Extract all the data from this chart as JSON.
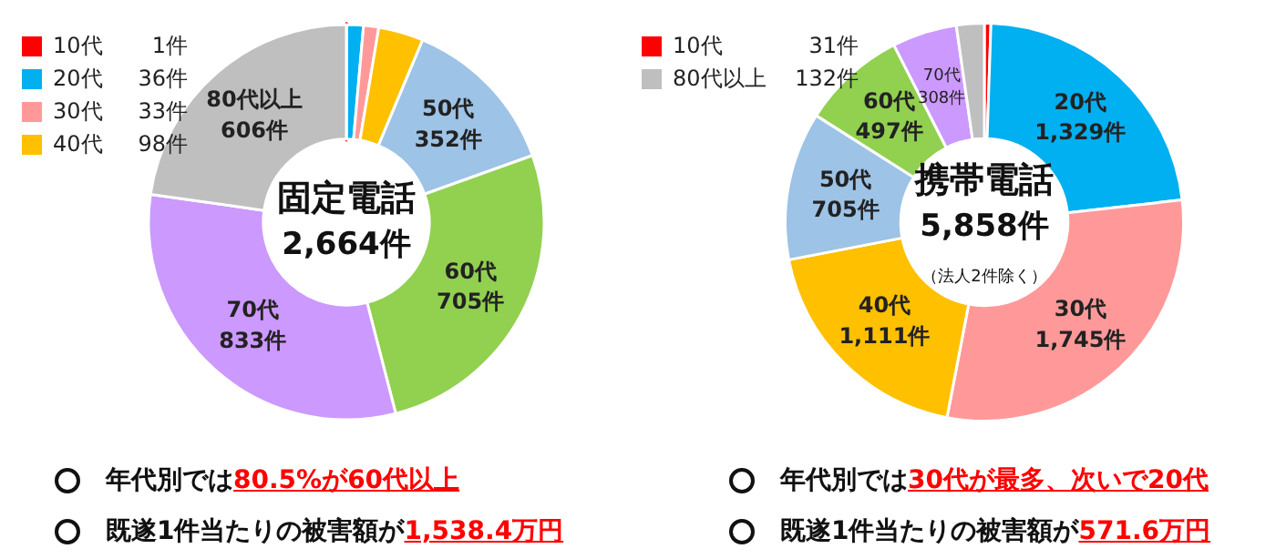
{
  "chart_data": [
    {
      "type": "donut",
      "title": "固定電話",
      "subtitle": "2,664件",
      "legend": "top left",
      "data_labels": true,
      "categories": [
        "10代",
        "20代",
        "30代",
        "40代",
        "50代",
        "60代",
        "70代",
        "80代以上"
      ],
      "values": [
        1,
        36,
        33,
        98,
        352,
        705,
        833,
        606
      ],
      "value_labels": [
        "1件",
        "36件",
        "33件",
        "98件",
        "352件",
        "705件",
        "833件",
        "606件"
      ],
      "colors": [
        "#ff0000",
        "#00b0f0",
        "#ff9999",
        "#ffc000",
        "#9dc3e6",
        "#92d050",
        "#cc99ff",
        "#bfbfbf"
      ],
      "annotations": [
        "年代別では",
        "80.5%が60代以上",
        "既遂1件当たりの被害額が",
        "1,538.4万円"
      ]
    },
    {
      "type": "donut",
      "title": "携帯電話",
      "subtitle": "5,858件",
      "legend": "top left",
      "data_labels": true,
      "categories": [
        "10代",
        "20代",
        "30代",
        "40代",
        "50代",
        "60代",
        "70代",
        "80代以上"
      ],
      "values": [
        31,
        1329,
        1745,
        1111,
        705,
        497,
        308,
        132
      ],
      "value_labels": [
        "31件",
        "1,329件",
        "1,745件",
        "1,111件",
        "705件",
        "497件",
        "308件",
        "132件"
      ],
      "colors": [
        "#ff0000",
        "#00b0f0",
        "#ff9999",
        "#ffc000",
        "#9dc3e6",
        "#92d050",
        "#cc99ff",
        "#bfbfbf"
      ],
      "annotations": [
        "（法人2件除く）",
        "年代別では",
        "30代が最多、次いで20代",
        "既遂1件当たりの被害額が",
        "571.6万円"
      ]
    }
  ]
}
